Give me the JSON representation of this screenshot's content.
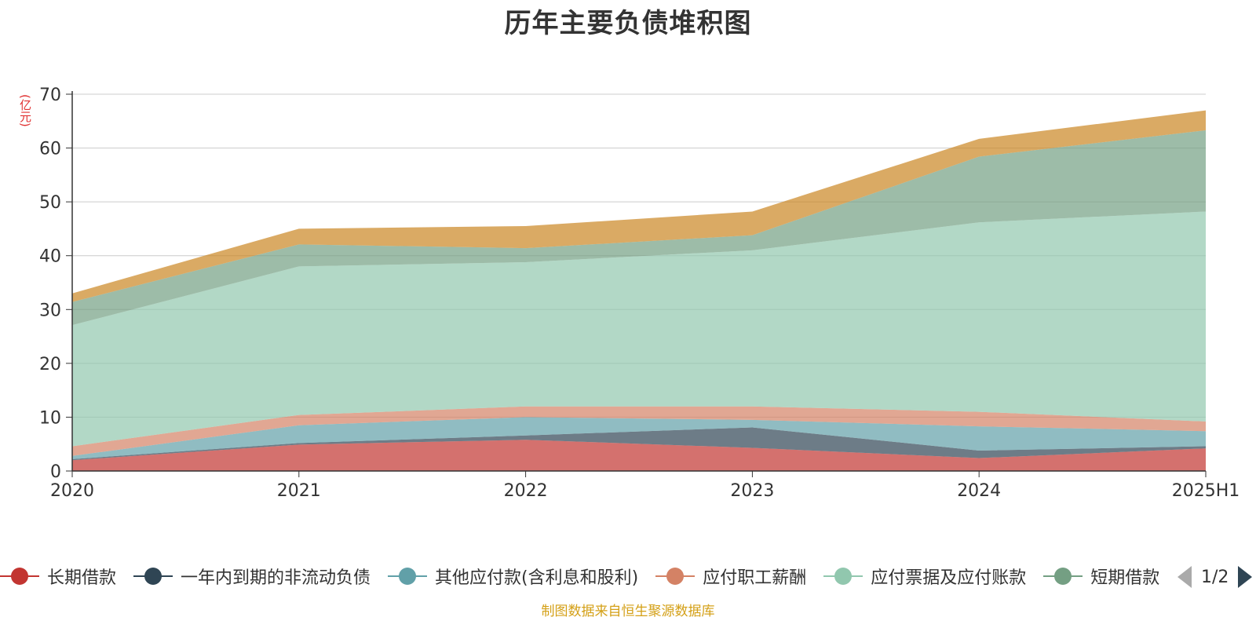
{
  "chart_data": {
    "type": "area",
    "stacked": true,
    "title": "历年主要负债堆积图",
    "unit_label": "(亿元)",
    "categories": [
      "2020",
      "2021",
      "2022",
      "2023",
      "2024",
      "2025H1"
    ],
    "ylim": [
      0,
      70
    ],
    "yticks": [
      0,
      10,
      20,
      30,
      40,
      50,
      60,
      70
    ],
    "grid": true,
    "series": [
      {
        "name": "长期借款",
        "color": "#c23531",
        "values": [
          2.0,
          4.9,
          5.8,
          4.3,
          2.4,
          4.2
        ]
      },
      {
        "name": "一年内到期的非流动负债",
        "color": "#2f4554",
        "values": [
          0.2,
          0.3,
          0.8,
          3.8,
          1.4,
          0.4
        ]
      },
      {
        "name": "其他应付款(含利息和股利)",
        "color": "#61a0a8",
        "values": [
          0.6,
          3.3,
          3.4,
          1.4,
          4.5,
          2.8
        ]
      },
      {
        "name": "应付职工薪酬",
        "color": "#d48265",
        "values": [
          1.8,
          1.9,
          2.0,
          2.5,
          2.7,
          1.8
        ]
      },
      {
        "name": "应付票据及应付账款",
        "color": "#91c7ae",
        "values": [
          22.5,
          27.6,
          26.8,
          29.0,
          35.2,
          39.0
        ]
      },
      {
        "name": "短期借款",
        "color": "#749f83",
        "values": [
          4.3,
          4.1,
          2.6,
          2.8,
          12.2,
          15.1
        ]
      },
      {
        "name": "",
        "color": "#ca8622",
        "values": [
          1.6,
          2.9,
          4.1,
          4.4,
          3.3,
          3.7
        ]
      }
    ]
  },
  "legend": {
    "items": [
      {
        "label": "长期借款",
        "color": "#c23531"
      },
      {
        "label": "一年内到期的非流动负债",
        "color": "#2f4554"
      },
      {
        "label": "其他应付款(含利息和股利)",
        "color": "#61a0a8"
      },
      {
        "label": "应付职工薪酬",
        "color": "#d48265"
      },
      {
        "label": "应付票据及应付账款",
        "color": "#91c7ae"
      },
      {
        "label": "短期借款",
        "color": "#749f83"
      }
    ],
    "page_info": "1/2"
  },
  "footer": {
    "source": "制图数据来自恒生聚源数据库"
  }
}
